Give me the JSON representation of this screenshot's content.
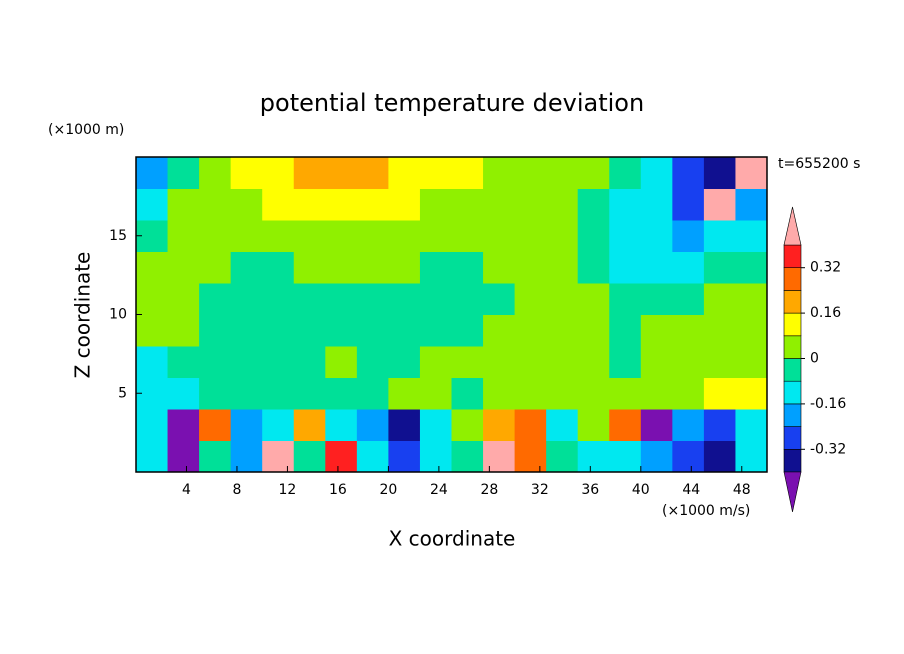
{
  "chart_data": {
    "type": "contourf",
    "title": "potential temperature deviation",
    "y_unit": "(×1000 m)",
    "x_unit": "(×1000 m/s)",
    "time_label": "t=655200 s",
    "xlabel": "X coordinate",
    "ylabel": "Z coordinate",
    "xlim": [
      0,
      50
    ],
    "ylim": [
      0,
      20
    ],
    "xticks": [
      4,
      8,
      12,
      16,
      20,
      24,
      28,
      32,
      36,
      40,
      44,
      48
    ],
    "yticks": [
      5,
      10,
      15
    ],
    "x": [
      1.25,
      3.75,
      6.25,
      8.75,
      11.25,
      13.75,
      16.25,
      18.75,
      21.25,
      23.75,
      26.25,
      28.75,
      31.25,
      33.75,
      36.25,
      38.75,
      41.25,
      43.75,
      46.25,
      48.75
    ],
    "y": [
      1,
      3,
      5,
      7,
      9,
      11,
      13,
      15,
      17,
      19
    ],
    "z": [
      [
        -0.12,
        -0.45,
        -0.04,
        -0.2,
        0.45,
        -0.04,
        0.36,
        -0.12,
        -0.28,
        -0.12,
        -0.04,
        0.45,
        0.28,
        -0.04,
        -0.12,
        -0.12,
        -0.2,
        -0.28,
        -0.36,
        -0.12
      ],
      [
        -0.12,
        -0.45,
        0.28,
        -0.2,
        -0.12,
        0.2,
        -0.12,
        -0.2,
        -0.36,
        -0.12,
        0.04,
        0.2,
        0.28,
        -0.12,
        0.04,
        0.28,
        -0.45,
        -0.2,
        -0.28,
        -0.12
      ],
      [
        -0.12,
        -0.12,
        -0.04,
        -0.04,
        -0.04,
        -0.04,
        -0.04,
        -0.04,
        0.04,
        0.04,
        -0.04,
        0.04,
        0.04,
        0.04,
        0.04,
        0.04,
        0.04,
        0.04,
        0.12,
        0.12
      ],
      [
        -0.12,
        -0.04,
        -0.04,
        -0.04,
        -0.04,
        -0.04,
        0.04,
        -0.04,
        -0.04,
        0.04,
        0.04,
        0.04,
        0.04,
        0.04,
        0.04,
        -0.04,
        0.04,
        0.04,
        0.04,
        0.04
      ],
      [
        0.04,
        0.04,
        -0.04,
        -0.04,
        -0.04,
        -0.04,
        -0.04,
        -0.04,
        -0.04,
        -0.04,
        -0.04,
        0.04,
        0.04,
        0.04,
        0.04,
        -0.04,
        0.04,
        0.04,
        0.04,
        0.04
      ],
      [
        0.04,
        0.04,
        -0.04,
        -0.04,
        -0.04,
        -0.04,
        -0.04,
        -0.04,
        -0.04,
        -0.04,
        -0.04,
        -0.04,
        0.04,
        0.04,
        0.04,
        -0.04,
        -0.04,
        -0.04,
        0.04,
        0.04
      ],
      [
        0.04,
        0.04,
        0.04,
        -0.04,
        -0.04,
        0.04,
        0.04,
        0.04,
        0.04,
        -0.04,
        -0.04,
        0.04,
        0.04,
        0.04,
        -0.04,
        -0.12,
        -0.12,
        -0.12,
        -0.04,
        -0.04
      ],
      [
        -0.04,
        0.04,
        0.04,
        0.04,
        0.04,
        0.04,
        0.04,
        0.04,
        0.04,
        0.04,
        0.04,
        0.04,
        0.04,
        0.04,
        -0.04,
        -0.12,
        -0.12,
        -0.2,
        -0.12,
        -0.12
      ],
      [
        -0.12,
        0.04,
        0.04,
        0.04,
        0.12,
        0.12,
        0.12,
        0.12,
        0.12,
        0.04,
        0.04,
        0.04,
        0.04,
        0.04,
        -0.04,
        -0.12,
        -0.12,
        -0.28,
        0.45,
        -0.2
      ],
      [
        -0.2,
        -0.04,
        0.04,
        0.12,
        0.12,
        0.2,
        0.2,
        0.2,
        0.12,
        0.12,
        0.12,
        0.04,
        0.04,
        0.04,
        0.04,
        -0.04,
        -0.12,
        -0.28,
        -0.36,
        0.45
      ]
    ],
    "colorbar": {
      "levels": [
        -0.4,
        -0.32,
        -0.24,
        -0.16,
        -0.08,
        0,
        0.08,
        0.16,
        0.24,
        0.32,
        0.4
      ],
      "colors": [
        "#7a10b0",
        "#101090",
        "#1840f0",
        "#00a0ff",
        "#00e8f0",
        "#00e098",
        "#90f000",
        "#ffff00",
        "#ffa800",
        "#ff6a00",
        "#ff2020",
        "#ffaaaa"
      ],
      "ticks": [
        -0.32,
        -0.16,
        0,
        0.16,
        0.32
      ]
    }
  }
}
